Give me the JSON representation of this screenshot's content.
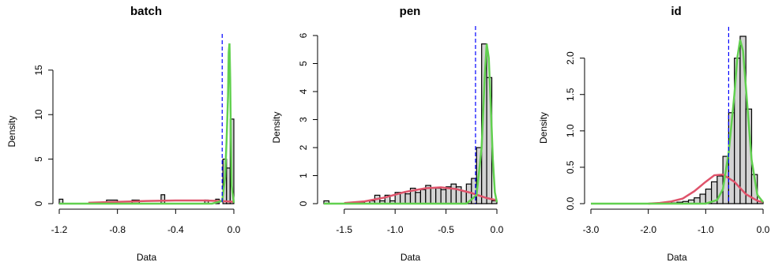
{
  "colors": {
    "bar_fill": "#d3d3d3",
    "bar_stroke": "#000000",
    "red": "#df536b",
    "green": "#61d04f",
    "vline": "#0000ff"
  },
  "chart_data": [
    {
      "type": "histogram",
      "title": "batch",
      "xlabel": "Data",
      "ylabel": "Density",
      "xlim": [
        -1.2,
        0.0
      ],
      "ylim": [
        0,
        18
      ],
      "x_ticks": [
        -1.2,
        -0.8,
        -0.4,
        0.0
      ],
      "x_tick_labels": [
        "-1.2",
        "-0.8",
        "-0.4",
        "0.0"
      ],
      "y_ticks": [
        0,
        5,
        10,
        15
      ],
      "y_tick_labels": [
        "0",
        "5",
        "10",
        "15"
      ],
      "vline_x": -0.08,
      "bins": [
        {
          "x0": -1.2,
          "x1": -1.175,
          "density": 0.5
        },
        {
          "x0": -0.875,
          "x1": -0.8,
          "density": 0.4
        },
        {
          "x0": -0.7,
          "x1": -0.65,
          "density": 0.4
        },
        {
          "x0": -0.5,
          "x1": -0.475,
          "density": 1.0
        },
        {
          "x0": -0.2,
          "x1": -0.175,
          "density": 0.4
        },
        {
          "x0": -0.125,
          "x1": -0.1,
          "density": 0.5
        },
        {
          "x0": -0.075,
          "x1": -0.05,
          "density": 5.0
        },
        {
          "x0": -0.05,
          "x1": -0.025,
          "density": 4.0
        },
        {
          "x0": -0.025,
          "x1": 0.0,
          "density": 9.5
        }
      ],
      "red_curve": {
        "x": [
          -1.0,
          -0.8,
          -0.6,
          -0.4,
          -0.2,
          -0.1,
          -0.05,
          0.0
        ],
        "y": [
          0.1,
          0.2,
          0.3,
          0.35,
          0.35,
          0.3,
          0.25,
          0.2
        ]
      },
      "green_curve": {
        "x": [
          -1.2,
          -0.15,
          -0.08,
          -0.06,
          -0.05,
          -0.04,
          -0.035,
          -0.03,
          -0.025,
          -0.02,
          -0.015,
          0.0
        ],
        "y": [
          0,
          0,
          0.3,
          3.0,
          7.0,
          12.0,
          17.0,
          18.0,
          14.0,
          7.0,
          2.0,
          0.1
        ]
      }
    },
    {
      "type": "histogram",
      "title": "pen",
      "xlabel": "Data",
      "ylabel": "Density",
      "xlim": [
        -1.7,
        0.0
      ],
      "ylim": [
        0,
        6
      ],
      "x_ticks": [
        -1.5,
        -1.0,
        -0.5,
        0.0
      ],
      "x_tick_labels": [
        "-1.5",
        "-1.0",
        "-0.5",
        "0.0"
      ],
      "y_ticks": [
        0,
        1,
        2,
        3,
        4,
        5,
        6
      ],
      "y_tick_labels": [
        "0",
        "1",
        "2",
        "3",
        "4",
        "5",
        "6"
      ],
      "vline_x": -0.21,
      "bins": [
        {
          "x0": -1.7,
          "x1": -1.65,
          "density": 0.1
        },
        {
          "x0": -1.35,
          "x1": -1.3,
          "density": 0.05
        },
        {
          "x0": -1.25,
          "x1": -1.2,
          "density": 0.1
        },
        {
          "x0": -1.2,
          "x1": -1.15,
          "density": 0.3
        },
        {
          "x0": -1.15,
          "x1": -1.1,
          "density": 0.1
        },
        {
          "x0": -1.1,
          "x1": -1.05,
          "density": 0.3
        },
        {
          "x0": -1.05,
          "x1": -1.0,
          "density": 0.1
        },
        {
          "x0": -1.0,
          "x1": -0.95,
          "density": 0.4
        },
        {
          "x0": -0.95,
          "x1": -0.9,
          "density": 0.4
        },
        {
          "x0": -0.9,
          "x1": -0.85,
          "density": 0.35
        },
        {
          "x0": -0.85,
          "x1": -0.8,
          "density": 0.55
        },
        {
          "x0": -0.8,
          "x1": -0.75,
          "density": 0.4
        },
        {
          "x0": -0.75,
          "x1": -0.7,
          "density": 0.5
        },
        {
          "x0": -0.7,
          "x1": -0.65,
          "density": 0.65
        },
        {
          "x0": -0.65,
          "x1": -0.6,
          "density": 0.55
        },
        {
          "x0": -0.6,
          "x1": -0.55,
          "density": 0.55
        },
        {
          "x0": -0.55,
          "x1": -0.5,
          "density": 0.5
        },
        {
          "x0": -0.5,
          "x1": -0.45,
          "density": 0.6
        },
        {
          "x0": -0.45,
          "x1": -0.4,
          "density": 0.7
        },
        {
          "x0": -0.4,
          "x1": -0.35,
          "density": 0.6
        },
        {
          "x0": -0.35,
          "x1": -0.3,
          "density": 0.45
        },
        {
          "x0": -0.3,
          "x1": -0.25,
          "density": 0.7
        },
        {
          "x0": -0.25,
          "x1": -0.2,
          "density": 0.9
        },
        {
          "x0": -0.2,
          "x1": -0.15,
          "density": 2.0
        },
        {
          "x0": -0.15,
          "x1": -0.1,
          "density": 5.7
        },
        {
          "x0": -0.1,
          "x1": -0.05,
          "density": 4.5
        },
        {
          "x0": -0.05,
          "x1": 0.0,
          "density": 0.1
        }
      ],
      "red_curve": {
        "x": [
          -1.5,
          -1.3,
          -1.1,
          -0.9,
          -0.7,
          -0.55,
          -0.4,
          -0.25,
          -0.1,
          0.0
        ],
        "y": [
          0.02,
          0.08,
          0.22,
          0.42,
          0.55,
          0.58,
          0.52,
          0.38,
          0.2,
          0.12
        ]
      },
      "green_curve": {
        "x": [
          -1.7,
          -0.3,
          -0.2,
          -0.15,
          -0.12,
          -0.1,
          -0.08,
          -0.06,
          -0.04,
          -0.02,
          0.0
        ],
        "y": [
          0,
          0,
          0.3,
          2.0,
          4.5,
          5.7,
          5.2,
          3.5,
          1.6,
          0.4,
          0.05
        ]
      }
    },
    {
      "type": "histogram",
      "title": "id",
      "xlabel": "Data",
      "ylabel": "Density",
      "xlim": [
        -3.0,
        0.0
      ],
      "ylim": [
        0,
        2.3
      ],
      "x_ticks": [
        -3.0,
        -2.0,
        -1.0,
        0.0
      ],
      "x_tick_labels": [
        "-3.0",
        "-2.0",
        "-1.0",
        "0.0"
      ],
      "y_ticks": [
        0.0,
        0.5,
        1.0,
        1.5,
        2.0
      ],
      "y_tick_labels": [
        "0.0",
        "0.5",
        "1.0",
        "1.5",
        "2.0"
      ],
      "vline_x": -0.6,
      "bins": [
        {
          "x0": -1.6,
          "x1": -1.5,
          "density": 0.01
        },
        {
          "x0": -1.5,
          "x1": -1.4,
          "density": 0.02
        },
        {
          "x0": -1.4,
          "x1": -1.3,
          "density": 0.03
        },
        {
          "x0": -1.3,
          "x1": -1.2,
          "density": 0.05
        },
        {
          "x0": -1.2,
          "x1": -1.1,
          "density": 0.08
        },
        {
          "x0": -1.1,
          "x1": -1.0,
          "density": 0.13
        },
        {
          "x0": -1.0,
          "x1": -0.9,
          "density": 0.2
        },
        {
          "x0": -0.9,
          "x1": -0.8,
          "density": 0.3
        },
        {
          "x0": -0.8,
          "x1": -0.7,
          "density": 0.38
        },
        {
          "x0": -0.7,
          "x1": -0.6,
          "density": 0.65
        },
        {
          "x0": -0.6,
          "x1": -0.5,
          "density": 1.25
        },
        {
          "x0": -0.5,
          "x1": -0.4,
          "density": 2.0
        },
        {
          "x0": -0.4,
          "x1": -0.3,
          "density": 2.3
        },
        {
          "x0": -0.3,
          "x1": -0.2,
          "density": 1.3
        },
        {
          "x0": -0.2,
          "x1": -0.1,
          "density": 0.4
        },
        {
          "x0": -0.1,
          "x1": 0.0,
          "density": 0.03
        }
      ],
      "red_curve": {
        "x": [
          -2.0,
          -1.8,
          -1.6,
          -1.4,
          -1.2,
          -1.0,
          -0.85,
          -0.7,
          -0.5,
          -0.3,
          -0.1,
          0.0
        ],
        "y": [
          0.0,
          0.01,
          0.03,
          0.07,
          0.17,
          0.3,
          0.39,
          0.4,
          0.3,
          0.13,
          0.04,
          0.02
        ]
      },
      "green_curve": {
        "x": [
          -3.0,
          -1.0,
          -0.8,
          -0.7,
          -0.6,
          -0.5,
          -0.45,
          -0.4,
          -0.35,
          -0.3,
          -0.2,
          -0.1,
          0.0
        ],
        "y": [
          0,
          0,
          0.05,
          0.2,
          0.7,
          1.5,
          2.0,
          2.25,
          2.1,
          1.6,
          0.6,
          0.12,
          0.02
        ]
      }
    }
  ]
}
